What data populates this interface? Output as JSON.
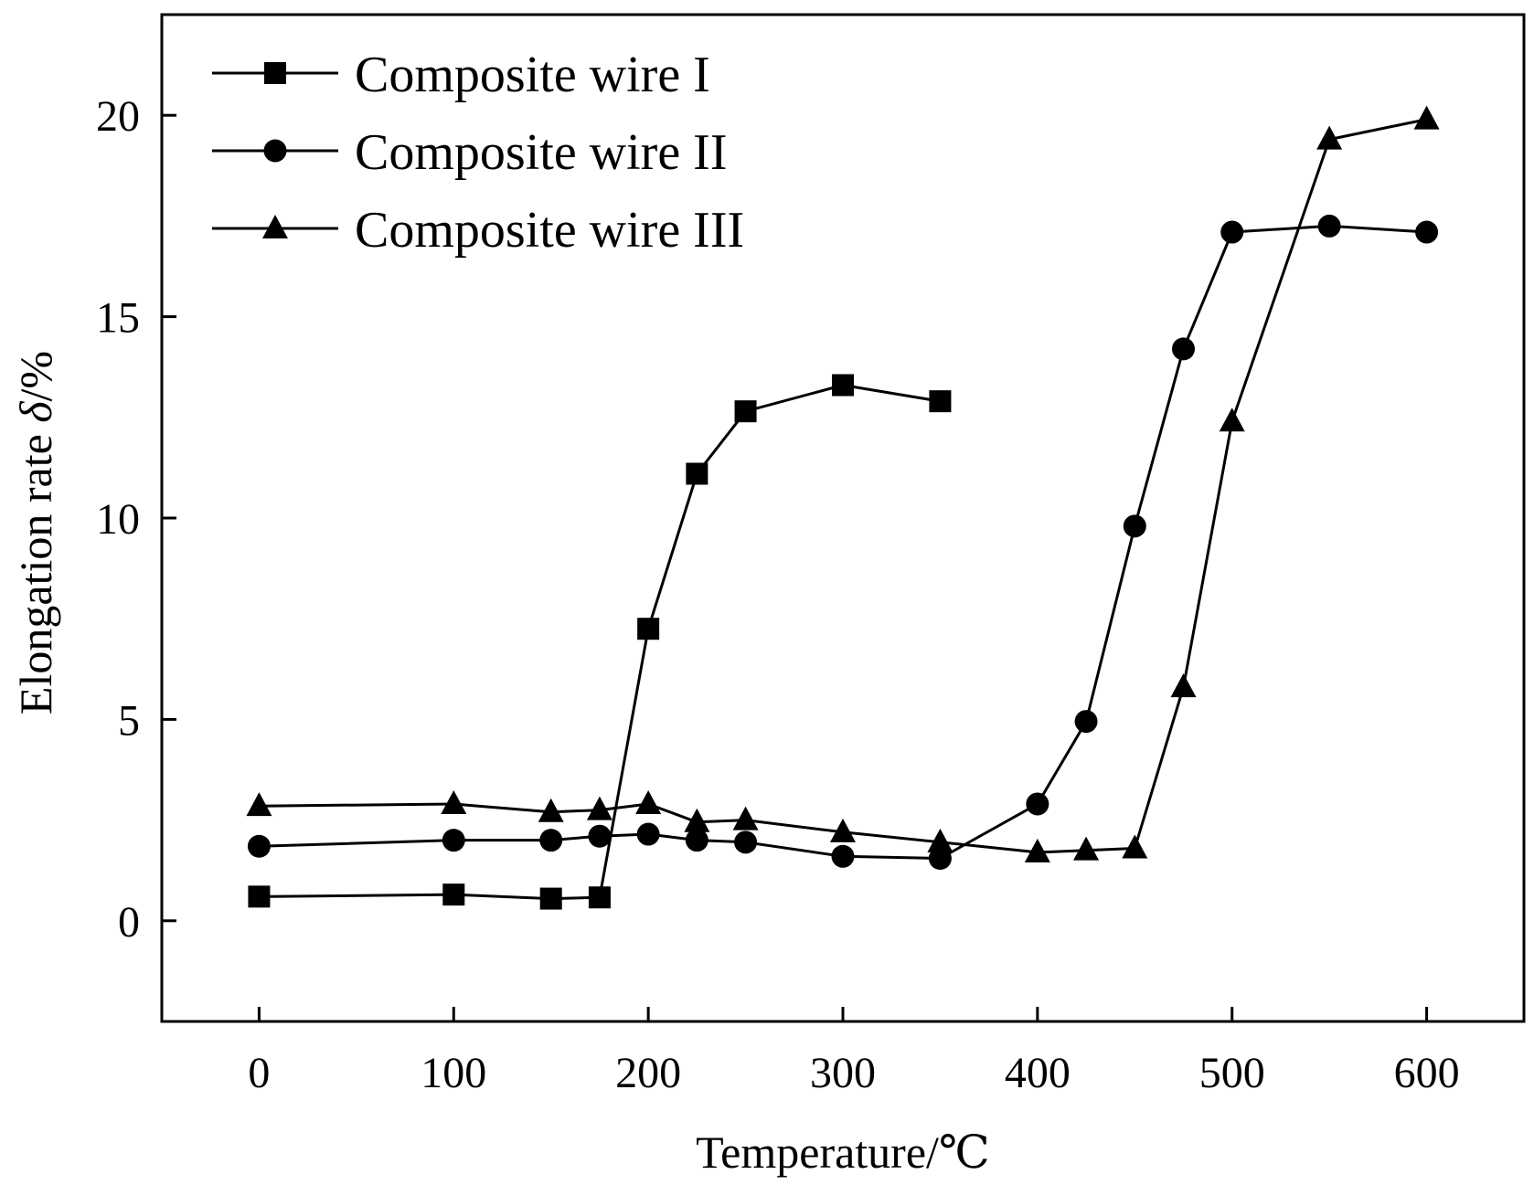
{
  "chart_data": {
    "type": "line",
    "xlabel": "Temperature/℃",
    "ylabel_prefix": "Elongation rate ",
    "ylabel_symbol": "δ",
    "ylabel_suffix": "/%",
    "xlim": [
      -50,
      650
    ],
    "ylim": [
      -2.5,
      22.5
    ],
    "xticks": [
      0,
      100,
      200,
      300,
      400,
      500,
      600
    ],
    "yticks": [
      0,
      5,
      10,
      15,
      20
    ],
    "grid": false,
    "legend_position": "top-left",
    "series": [
      {
        "name": "Composite wire I",
        "marker": "square",
        "x": [
          0,
          100,
          150,
          175,
          200,
          225,
          250,
          300,
          350
        ],
        "y": [
          0.6,
          0.65,
          0.55,
          0.58,
          7.25,
          11.1,
          12.65,
          13.3,
          12.9
        ]
      },
      {
        "name": "Composite wire II",
        "marker": "circle",
        "x": [
          0,
          100,
          150,
          175,
          200,
          225,
          250,
          300,
          350,
          400,
          425,
          450,
          475,
          500,
          550,
          600
        ],
        "y": [
          1.85,
          2.0,
          2.0,
          2.1,
          2.15,
          2.0,
          1.95,
          1.6,
          1.55,
          2.9,
          4.95,
          9.8,
          14.2,
          17.1,
          17.25,
          17.1
        ]
      },
      {
        "name": "Composite wire III",
        "marker": "triangle",
        "x": [
          0,
          100,
          150,
          175,
          200,
          225,
          250,
          300,
          350,
          400,
          425,
          450,
          475,
          500,
          550,
          600
        ],
        "y": [
          2.85,
          2.9,
          2.7,
          2.75,
          2.9,
          2.45,
          2.5,
          2.2,
          1.95,
          1.7,
          1.75,
          1.8,
          5.8,
          12.4,
          19.4,
          19.9
        ]
      }
    ]
  }
}
